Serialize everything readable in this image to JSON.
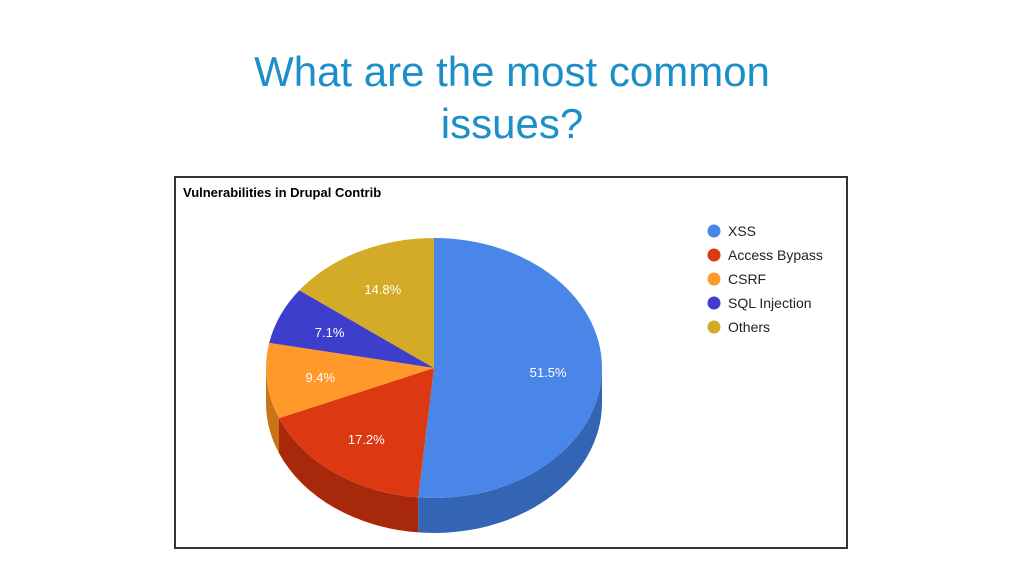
{
  "slide": {
    "title_line1": "What are the most common",
    "title_line2": "issues?"
  },
  "chart_data": {
    "type": "pie",
    "title": "Vulnerabilities in Drupal Contrib",
    "legend_position": "right",
    "three_d": true,
    "slices": [
      {
        "name": "XSS",
        "value": 51.5,
        "label": "51.5%",
        "color": "#4a86e8",
        "side_color": "#3464b4"
      },
      {
        "name": "Access Bypass",
        "value": 17.2,
        "label": "17.2%",
        "color": "#dc3912",
        "side_color": "#a8280c"
      },
      {
        "name": "CSRF",
        "value": 9.4,
        "label": "9.4%",
        "color": "#ff9929",
        "side_color": "#c87418"
      },
      {
        "name": "SQL Injection",
        "value": 7.1,
        "label": "7.1%",
        "color": "#3d3fcc",
        "side_color": "#2d2e98"
      },
      {
        "name": "Others",
        "value": 14.8,
        "label": "14.8%",
        "color": "#d4ab26",
        "side_color": "#a0801a"
      }
    ]
  }
}
